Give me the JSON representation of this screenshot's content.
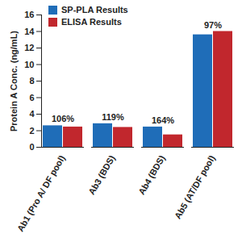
{
  "chart_data": {
    "type": "bar",
    "categories": [
      "Ab1 (Pro A/ DF pool)",
      "Ab3 (BDS)",
      "Ab4 (BDS)",
      "Ab5 (AT/DF pool)"
    ],
    "series": [
      {
        "name": "SP-PLA Results",
        "color": "#1f6db8",
        "values": [
          2.6,
          2.85,
          2.45,
          13.6
        ]
      },
      {
        "name": "ELISA Results",
        "color": "#c1272d",
        "values": [
          2.45,
          2.4,
          1.5,
          14.0
        ]
      }
    ],
    "annotations": [
      "106%",
      "119%",
      "164%",
      "97%"
    ],
    "y_label": "Protein A Conc. (ng/mL)",
    "ylim": [
      0,
      16
    ],
    "yticks": [
      0,
      2,
      4,
      6,
      8,
      10,
      12,
      14,
      16
    ],
    "grid": false,
    "legend": "top-left"
  }
}
